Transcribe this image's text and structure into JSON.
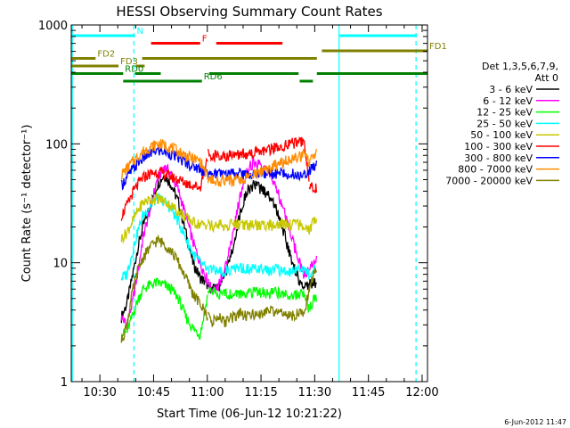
{
  "chart_data": {
    "type": "line",
    "title": "HESSI Observing Summary Count Rates",
    "xlabel": "Start Time (06-Jun-12 10:21:22)",
    "ylabel": "Count Rate (s⁻¹ detector⁻¹)",
    "yscale": "log",
    "ylim": [
      1,
      1000
    ],
    "xlim_minutes": [
      22.0,
      121.5
    ],
    "x_unit": "minutes after 10:00 UT",
    "x_ticks": [
      {
        "value": 30,
        "label": "10:30"
      },
      {
        "value": 45,
        "label": "10:45"
      },
      {
        "value": 60,
        "label": "11:00"
      },
      {
        "value": 75,
        "label": "11:15"
      },
      {
        "value": 90,
        "label": "11:30"
      },
      {
        "value": 105,
        "label": "11:45"
      },
      {
        "value": 120,
        "label": "12:00"
      }
    ],
    "y_ticks": [
      {
        "value": 1,
        "label": "1"
      },
      {
        "value": 10,
        "label": "10"
      },
      {
        "value": 100,
        "label": "100"
      },
      {
        "value": 1000,
        "label": "1000"
      }
    ],
    "legend_header": [
      "Det 1,3,5,6,7,9,",
      "Att 0"
    ],
    "legend_position": "right",
    "footer_date": "6-Jun-2012 11:47",
    "series": [
      {
        "name": "3 - 6 keV",
        "color": "#000000",
        "x": [
          36.0,
          37.5,
          39.0,
          40.5,
          42,
          44,
          46,
          48,
          50,
          52,
          54,
          56,
          58,
          60.2,
          61.5,
          63,
          65,
          67,
          69,
          71,
          73,
          75,
          77,
          79,
          81,
          83,
          85,
          87,
          88.5,
          89.5,
          90.5
        ],
        "y": [
          3.5,
          4.5,
          7.5,
          13,
          20,
          30,
          45,
          55,
          45,
          32,
          18,
          10,
          7.5,
          6.5,
          6,
          6,
          8,
          13,
          25,
          40,
          45,
          42,
          38,
          30,
          20,
          12,
          8,
          6,
          6.5,
          7,
          6.5
        ]
      },
      {
        "name": "6 - 12 keV",
        "color": "#ff00ff",
        "x": [
          36.0,
          37.5,
          39.0,
          40.5,
          42,
          44,
          46,
          48,
          50,
          52,
          54,
          56,
          58,
          60.2,
          61.5,
          63,
          65,
          67,
          69,
          71,
          73,
          75,
          77,
          79,
          81,
          83,
          85,
          87,
          88.5,
          89.5,
          90.5
        ],
        "y": [
          3.5,
          3.0,
          4.5,
          8,
          16,
          28,
          50,
          65,
          55,
          40,
          25,
          15,
          10,
          7,
          6,
          6.5,
          9,
          16,
          35,
          60,
          70,
          65,
          58,
          45,
          30,
          18,
          12,
          8,
          8.5,
          10,
          11
        ]
      },
      {
        "name": "12 - 25 keV",
        "color": "#00ff00",
        "x": [
          36.0,
          37.5,
          39.0,
          40.5,
          42,
          44,
          46,
          48,
          50,
          52,
          54,
          56,
          58,
          60.2,
          61.5,
          63,
          65,
          67,
          69,
          71,
          73,
          75,
          77,
          79,
          81,
          83,
          85,
          87,
          88.5,
          89.5,
          90.5
        ],
        "y": [
          2.5,
          2.6,
          3.5,
          4.8,
          6.0,
          6.5,
          6.8,
          6.5,
          6.0,
          5.0,
          3.5,
          2.8,
          2.5,
          5.5,
          5.8,
          5.5,
          5.5,
          5.4,
          5.6,
          5.5,
          5.8,
          5.7,
          5.5,
          5.6,
          5.5,
          5.3,
          5.5,
          5.6,
          4.0,
          4.8,
          5.2
        ]
      },
      {
        "name": "25 - 50 keV",
        "color": "#00ffff",
        "x": [
          36.0,
          37.5,
          39.0,
          40.5,
          42,
          44,
          46,
          48,
          50,
          52,
          54,
          56,
          58,
          60.2,
          61.5,
          63,
          65,
          67,
          69,
          71,
          73,
          75,
          77,
          79,
          81,
          83,
          85,
          87,
          88.5,
          89.5,
          90.5
        ],
        "y": [
          7.5,
          8,
          12,
          18,
          25,
          30,
          35,
          33,
          28,
          22,
          16,
          12,
          10,
          8.5,
          8.8,
          8.5,
          8.5,
          8.8,
          9,
          8.8,
          9,
          8.8,
          8.5,
          8.8,
          8.5,
          8.5,
          8.8,
          8.5,
          8.0,
          8.5,
          9
        ]
      },
      {
        "name": "50 - 100 keV",
        "color": "#c8c800",
        "x": [
          36.0,
          37.5,
          39.0,
          40.5,
          42,
          44,
          46,
          48,
          50,
          52,
          54,
          56,
          58,
          60.2,
          61.5,
          63,
          65,
          67,
          69,
          71,
          73,
          75,
          77,
          79,
          81,
          83,
          85,
          87,
          88.5,
          89.5,
          90.5
        ],
        "y": [
          16,
          18,
          22,
          27,
          32,
          34,
          35,
          33,
          30,
          27,
          24,
          22,
          21,
          21,
          20.5,
          21,
          20.5,
          21,
          21,
          20.5,
          21,
          20.8,
          21,
          20.5,
          21,
          20.8,
          21,
          20.5,
          19,
          22,
          24
        ]
      },
      {
        "name": "100 - 300 keV",
        "color": "#ff0000",
        "x": [
          36.0,
          37.5,
          39.0,
          40.5,
          42,
          44,
          46,
          48,
          50,
          52,
          54,
          56,
          58,
          60.2,
          61.5,
          63,
          65,
          67,
          69,
          71,
          73,
          75,
          77,
          79,
          81,
          83,
          85,
          87,
          88.5,
          89.5,
          90.5
        ],
        "y": [
          25,
          30,
          38,
          45,
          52,
          56,
          58,
          56,
          53,
          50,
          47,
          45,
          43,
          82,
          80,
          81,
          80,
          81,
          82,
          83,
          85,
          87,
          90,
          93,
          96,
          100,
          103,
          107,
          45,
          43,
          42
        ]
      },
      {
        "name": "300 - 800 keV",
        "color": "#0000ff",
        "x": [
          36.0,
          37.5,
          39.0,
          40.5,
          42,
          44,
          46,
          48,
          50,
          52,
          54,
          56,
          58,
          60.2,
          61.5,
          63,
          65,
          67,
          69,
          71,
          73,
          75,
          77,
          79,
          81,
          83,
          85,
          87,
          88.5,
          89.5,
          90.5
        ],
        "y": [
          45,
          52,
          60,
          68,
          76,
          83,
          88,
          86,
          82,
          76,
          70,
          65,
          62,
          56,
          55.5,
          56,
          55.5,
          56,
          56,
          55.5,
          56,
          55.8,
          56,
          55.5,
          56,
          55.8,
          56,
          55.5,
          60,
          64,
          68
        ]
      },
      {
        "name": "800 - 7000 keV",
        "color": "#ff8c00",
        "x": [
          36.0,
          37.5,
          39.0,
          40.5,
          42,
          44,
          46,
          48,
          50,
          52,
          54,
          56,
          58,
          60.2,
          61.5,
          63,
          65,
          67,
          69,
          71,
          73,
          75,
          77,
          79,
          81,
          83,
          85,
          87,
          88.5,
          89.5,
          90.5
        ],
        "y": [
          55,
          62,
          70,
          78,
          86,
          94,
          100,
          98,
          93,
          86,
          80,
          75,
          72,
          52,
          50,
          49,
          48.5,
          49,
          50,
          52,
          55,
          58,
          62,
          66,
          70,
          74,
          78,
          82,
          70,
          75,
          82
        ]
      },
      {
        "name": "7000 - 20000 keV",
        "color": "#808000",
        "x": [
          36.0,
          37.5,
          39.0,
          40.5,
          42,
          44,
          46,
          48,
          50,
          52,
          54,
          56,
          58,
          60.2,
          61.5,
          63,
          65,
          67,
          69,
          71,
          73,
          75,
          77,
          79,
          81,
          83,
          85,
          87,
          88.5,
          89.5,
          90.5
        ],
        "y": [
          2.2,
          3.0,
          5.5,
          8.5,
          11,
          13.5,
          15.5,
          14.5,
          12.5,
          10,
          7.5,
          5.5,
          4.5,
          3.5,
          3.2,
          3.5,
          3.2,
          3.5,
          3.8,
          3.5,
          3.7,
          3.8,
          4.0,
          3.8,
          3.7,
          3.5,
          3.8,
          3.6,
          6.0,
          7.5,
          9.0
        ]
      }
    ],
    "flag_segments": [
      {
        "label": "N",
        "color": "#00ffff",
        "level": 1,
        "ranges": [
          [
            22.0,
            39.8
          ],
          [
            97.0,
            118.5
          ]
        ]
      },
      {
        "label": "F",
        "color": "#ff0000",
        "level": 2,
        "ranges": [
          [
            44.3,
            58.0
          ],
          [
            62.5,
            81.0
          ]
        ]
      },
      {
        "label": "FD1",
        "color": "#808000",
        "level": 3,
        "ranges": [
          [
            92.0,
            121.5
          ]
        ]
      },
      {
        "label": "FD2",
        "color": "#808000",
        "level": 4,
        "ranges": [
          [
            22.0,
            28.8
          ],
          [
            41.8,
            90.6
          ]
        ]
      },
      {
        "label": "FD3",
        "color": "#808000",
        "level": 5,
        "ranges": [
          [
            22.0,
            35.2
          ],
          [
            40.0,
            42.5
          ]
        ]
      },
      {
        "label": "RD0",
        "color": "#008000",
        "level": 6,
        "ranges": [
          [
            22.0,
            36.5
          ],
          [
            39.8,
            47.0
          ],
          [
            60.5,
            85.5
          ],
          [
            90.6,
            121.5
          ]
        ]
      },
      {
        "label": "RD6",
        "color": "#008000",
        "level": 7,
        "ranges": [
          [
            36.5,
            58.5
          ],
          [
            85.8,
            89.5
          ]
        ]
      }
    ],
    "vertical_lines": [
      {
        "x": 22.3,
        "color": "#00ffff",
        "style": "solid"
      },
      {
        "x": 39.5,
        "color": "#00ffff",
        "style": "dashed"
      },
      {
        "x": 96.8,
        "color": "#00ffff",
        "style": "solid"
      },
      {
        "x": 118.3,
        "color": "#00ffff",
        "style": "dashed"
      }
    ],
    "grid": false
  }
}
